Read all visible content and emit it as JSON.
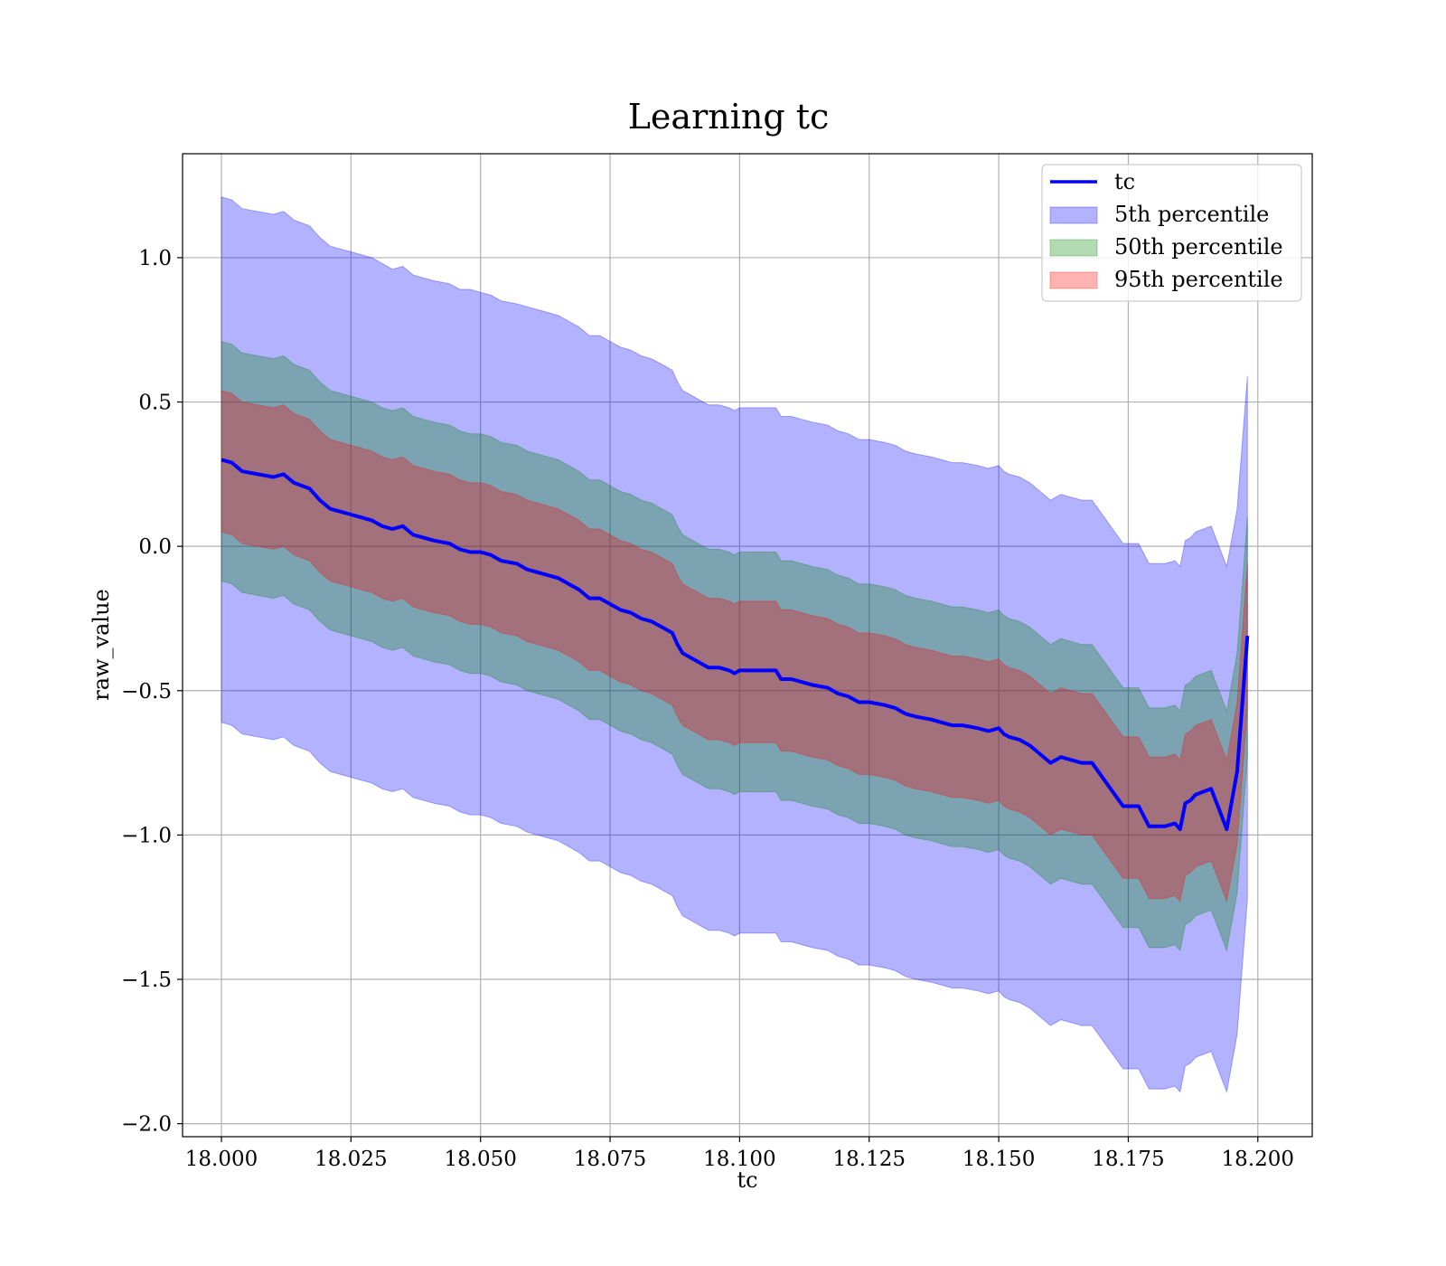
{
  "chart_data": {
    "type": "line",
    "title": "Learning tc",
    "xlabel": "tc",
    "ylabel": "raw_value",
    "xlim": [
      17.9925,
      18.2105
    ],
    "ylim": [
      -2.045,
      1.36
    ],
    "x_ticks": [
      18.0,
      18.025,
      18.05,
      18.075,
      18.1,
      18.125,
      18.15,
      18.175,
      18.2
    ],
    "x_tick_labels": [
      "18.000",
      "18.025",
      "18.050",
      "18.075",
      "18.100",
      "18.125",
      "18.150",
      "18.175",
      "18.200"
    ],
    "y_ticks": [
      1.0,
      0.5,
      0.0,
      -0.5,
      -1.0,
      -1.5,
      -2.0
    ],
    "y_tick_labels": [
      "1.0",
      "0.5",
      "0.0",
      "−0.5",
      "−1.0",
      "−1.5",
      "−2.0"
    ],
    "grid": true,
    "legend_position": "top-right",
    "x": [
      18.0,
      18.002,
      18.004,
      18.01,
      18.012,
      18.014,
      18.017,
      18.019,
      18.021,
      18.025,
      18.029,
      18.031,
      18.033,
      18.035,
      18.037,
      18.039,
      18.041,
      18.044,
      18.046,
      18.048,
      18.05,
      18.052,
      18.054,
      18.057,
      18.059,
      18.061,
      18.063,
      18.065,
      18.067,
      18.069,
      18.071,
      18.073,
      18.075,
      18.077,
      18.079,
      18.081,
      18.083,
      18.085,
      18.087,
      18.088,
      18.089,
      18.09,
      18.092,
      18.094,
      18.096,
      18.098,
      18.099,
      18.1,
      18.104,
      18.107,
      18.108,
      18.11,
      18.112,
      18.114,
      18.117,
      18.119,
      18.121,
      18.123,
      18.125,
      18.128,
      18.13,
      18.132,
      18.134,
      18.137,
      18.139,
      18.141,
      18.143,
      18.146,
      18.148,
      18.15,
      18.151,
      18.152,
      18.154,
      18.156,
      18.158,
      18.16,
      18.162,
      18.164,
      18.166,
      18.168,
      18.17,
      18.172,
      18.174,
      18.175,
      18.177,
      18.179,
      18.181,
      18.182,
      18.184,
      18.185,
      18.186,
      18.187,
      18.188,
      18.191,
      18.194,
      18.196,
      18.198
    ],
    "series": [
      {
        "name": "tc",
        "color": "#0000ff",
        "values": [
          0.3,
          0.29,
          0.26,
          0.24,
          0.25,
          0.22,
          0.2,
          0.16,
          0.13,
          0.11,
          0.09,
          0.07,
          0.06,
          0.07,
          0.04,
          0.03,
          0.02,
          0.01,
          -0.01,
          -0.02,
          -0.02,
          -0.03,
          -0.05,
          -0.06,
          -0.08,
          -0.09,
          -0.1,
          -0.11,
          -0.13,
          -0.15,
          -0.18,
          -0.18,
          -0.2,
          -0.22,
          -0.23,
          -0.25,
          -0.26,
          -0.28,
          -0.3,
          -0.34,
          -0.37,
          -0.38,
          -0.4,
          -0.42,
          -0.42,
          -0.43,
          -0.44,
          -0.43,
          -0.43,
          -0.43,
          -0.46,
          -0.46,
          -0.47,
          -0.48,
          -0.49,
          -0.51,
          -0.52,
          -0.54,
          -0.54,
          -0.55,
          -0.56,
          -0.58,
          -0.59,
          -0.6,
          -0.61,
          -0.62,
          -0.62,
          -0.63,
          -0.64,
          -0.63,
          -0.65,
          -0.66,
          -0.67,
          -0.69,
          -0.72,
          -0.75,
          -0.73,
          -0.74,
          -0.75,
          -0.75,
          -0.8,
          -0.85,
          -0.9,
          -0.9,
          -0.9,
          -0.97,
          -0.97,
          -0.97,
          -0.96,
          -0.98,
          -0.89,
          -0.88,
          -0.86,
          -0.84,
          -0.98,
          -0.78,
          -0.31
        ]
      },
      {
        "name": "5th percentile",
        "color": "#0000ff",
        "fill_opacity": 0.3,
        "upper": [
          1.21,
          1.2,
          1.17,
          1.15,
          1.16,
          1.13,
          1.11,
          1.07,
          1.04,
          1.02,
          1.0,
          0.98,
          0.96,
          0.97,
          0.94,
          0.93,
          0.92,
          0.91,
          0.89,
          0.89,
          0.88,
          0.87,
          0.85,
          0.84,
          0.83,
          0.82,
          0.81,
          0.8,
          0.78,
          0.76,
          0.73,
          0.73,
          0.71,
          0.69,
          0.68,
          0.66,
          0.65,
          0.63,
          0.61,
          0.57,
          0.54,
          0.53,
          0.51,
          0.49,
          0.49,
          0.48,
          0.47,
          0.48,
          0.48,
          0.48,
          0.45,
          0.45,
          0.44,
          0.43,
          0.42,
          0.4,
          0.39,
          0.37,
          0.37,
          0.36,
          0.35,
          0.33,
          0.32,
          0.31,
          0.3,
          0.29,
          0.29,
          0.28,
          0.27,
          0.28,
          0.26,
          0.25,
          0.24,
          0.22,
          0.19,
          0.16,
          0.18,
          0.17,
          0.16,
          0.16,
          0.11,
          0.06,
          0.01,
          0.01,
          0.01,
          -0.06,
          -0.06,
          -0.06,
          -0.05,
          -0.07,
          0.02,
          0.03,
          0.05,
          0.07,
          -0.07,
          0.13,
          0.59
        ],
        "lower": [
          -0.61,
          -0.62,
          -0.65,
          -0.67,
          -0.66,
          -0.69,
          -0.71,
          -0.75,
          -0.78,
          -0.8,
          -0.82,
          -0.84,
          -0.85,
          -0.84,
          -0.87,
          -0.88,
          -0.89,
          -0.9,
          -0.92,
          -0.93,
          -0.93,
          -0.94,
          -0.96,
          -0.97,
          -0.99,
          -1.0,
          -1.01,
          -1.02,
          -1.04,
          -1.06,
          -1.09,
          -1.09,
          -1.11,
          -1.13,
          -1.14,
          -1.16,
          -1.17,
          -1.19,
          -1.21,
          -1.25,
          -1.28,
          -1.29,
          -1.31,
          -1.33,
          -1.33,
          -1.34,
          -1.35,
          -1.34,
          -1.34,
          -1.34,
          -1.37,
          -1.37,
          -1.38,
          -1.39,
          -1.4,
          -1.42,
          -1.43,
          -1.45,
          -1.45,
          -1.46,
          -1.47,
          -1.49,
          -1.5,
          -1.51,
          -1.52,
          -1.53,
          -1.53,
          -1.54,
          -1.55,
          -1.54,
          -1.56,
          -1.57,
          -1.58,
          -1.6,
          -1.63,
          -1.66,
          -1.64,
          -1.65,
          -1.66,
          -1.66,
          -1.71,
          -1.76,
          -1.81,
          -1.81,
          -1.81,
          -1.88,
          -1.88,
          -1.88,
          -1.87,
          -1.89,
          -1.8,
          -1.79,
          -1.77,
          -1.75,
          -1.89,
          -1.69,
          -1.22
        ]
      },
      {
        "name": "50th percentile",
        "color": "#008000",
        "fill_opacity": 0.3,
        "upper": [
          0.71,
          0.7,
          0.67,
          0.65,
          0.66,
          0.63,
          0.61,
          0.57,
          0.54,
          0.52,
          0.5,
          0.48,
          0.47,
          0.48,
          0.45,
          0.44,
          0.43,
          0.42,
          0.4,
          0.39,
          0.39,
          0.38,
          0.36,
          0.35,
          0.33,
          0.32,
          0.31,
          0.3,
          0.28,
          0.26,
          0.23,
          0.23,
          0.21,
          0.19,
          0.18,
          0.16,
          0.15,
          0.13,
          0.11,
          0.07,
          0.04,
          0.03,
          0.01,
          -0.01,
          -0.01,
          -0.02,
          -0.03,
          -0.02,
          -0.02,
          -0.02,
          -0.05,
          -0.05,
          -0.06,
          -0.07,
          -0.08,
          -0.1,
          -0.11,
          -0.13,
          -0.13,
          -0.14,
          -0.15,
          -0.17,
          -0.18,
          -0.19,
          -0.2,
          -0.21,
          -0.21,
          -0.22,
          -0.23,
          -0.22,
          -0.24,
          -0.25,
          -0.26,
          -0.28,
          -0.31,
          -0.34,
          -0.32,
          -0.33,
          -0.34,
          -0.34,
          -0.39,
          -0.44,
          -0.49,
          -0.49,
          -0.49,
          -0.56,
          -0.56,
          -0.56,
          -0.55,
          -0.57,
          -0.48,
          -0.47,
          -0.45,
          -0.43,
          -0.57,
          -0.37,
          0.1
        ],
        "lower": [
          -0.12,
          -0.13,
          -0.16,
          -0.18,
          -0.17,
          -0.2,
          -0.22,
          -0.26,
          -0.29,
          -0.31,
          -0.33,
          -0.35,
          -0.36,
          -0.35,
          -0.38,
          -0.39,
          -0.4,
          -0.41,
          -0.43,
          -0.44,
          -0.44,
          -0.45,
          -0.47,
          -0.48,
          -0.5,
          -0.51,
          -0.52,
          -0.53,
          -0.55,
          -0.57,
          -0.6,
          -0.6,
          -0.62,
          -0.64,
          -0.65,
          -0.67,
          -0.68,
          -0.7,
          -0.72,
          -0.76,
          -0.79,
          -0.8,
          -0.82,
          -0.84,
          -0.84,
          -0.85,
          -0.86,
          -0.85,
          -0.85,
          -0.85,
          -0.88,
          -0.88,
          -0.89,
          -0.9,
          -0.91,
          -0.93,
          -0.94,
          -0.96,
          -0.96,
          -0.97,
          -0.98,
          -1.0,
          -1.01,
          -1.02,
          -1.03,
          -1.04,
          -1.04,
          -1.05,
          -1.06,
          -1.05,
          -1.07,
          -1.08,
          -1.09,
          -1.11,
          -1.14,
          -1.17,
          -1.15,
          -1.16,
          -1.17,
          -1.17,
          -1.22,
          -1.27,
          -1.32,
          -1.32,
          -1.32,
          -1.39,
          -1.39,
          -1.39,
          -1.38,
          -1.4,
          -1.31,
          -1.3,
          -1.28,
          -1.26,
          -1.4,
          -1.2,
          -0.73
        ]
      },
      {
        "name": "95th percentile",
        "color": "#ff0000",
        "fill_opacity": 0.3,
        "upper": [
          0.54,
          0.53,
          0.5,
          0.48,
          0.49,
          0.46,
          0.44,
          0.4,
          0.37,
          0.35,
          0.33,
          0.31,
          0.3,
          0.31,
          0.28,
          0.27,
          0.26,
          0.25,
          0.23,
          0.22,
          0.22,
          0.21,
          0.19,
          0.18,
          0.16,
          0.15,
          0.14,
          0.13,
          0.11,
          0.09,
          0.06,
          0.06,
          0.04,
          0.02,
          0.01,
          -0.01,
          -0.02,
          -0.04,
          -0.06,
          -0.1,
          -0.13,
          -0.14,
          -0.16,
          -0.18,
          -0.18,
          -0.19,
          -0.2,
          -0.19,
          -0.19,
          -0.19,
          -0.22,
          -0.22,
          -0.23,
          -0.24,
          -0.25,
          -0.27,
          -0.28,
          -0.3,
          -0.3,
          -0.31,
          -0.32,
          -0.34,
          -0.35,
          -0.36,
          -0.37,
          -0.38,
          -0.38,
          -0.39,
          -0.4,
          -0.39,
          -0.41,
          -0.42,
          -0.43,
          -0.45,
          -0.48,
          -0.51,
          -0.49,
          -0.5,
          -0.51,
          -0.51,
          -0.56,
          -0.61,
          -0.66,
          -0.66,
          -0.66,
          -0.73,
          -0.73,
          -0.73,
          -0.72,
          -0.74,
          -0.65,
          -0.64,
          -0.62,
          -0.6,
          -0.74,
          -0.54,
          -0.06
        ],
        "lower": [
          0.05,
          0.04,
          0.01,
          -0.01,
          0.0,
          -0.03,
          -0.05,
          -0.09,
          -0.12,
          -0.14,
          -0.16,
          -0.18,
          -0.19,
          -0.18,
          -0.21,
          -0.22,
          -0.23,
          -0.24,
          -0.26,
          -0.27,
          -0.27,
          -0.28,
          -0.3,
          -0.31,
          -0.33,
          -0.34,
          -0.35,
          -0.36,
          -0.38,
          -0.4,
          -0.43,
          -0.43,
          -0.45,
          -0.47,
          -0.48,
          -0.5,
          -0.51,
          -0.53,
          -0.55,
          -0.59,
          -0.62,
          -0.63,
          -0.65,
          -0.67,
          -0.67,
          -0.68,
          -0.69,
          -0.68,
          -0.68,
          -0.68,
          -0.71,
          -0.71,
          -0.72,
          -0.73,
          -0.74,
          -0.76,
          -0.77,
          -0.79,
          -0.79,
          -0.8,
          -0.81,
          -0.83,
          -0.84,
          -0.85,
          -0.86,
          -0.87,
          -0.87,
          -0.88,
          -0.89,
          -0.88,
          -0.9,
          -0.91,
          -0.92,
          -0.94,
          -0.97,
          -1.0,
          -0.98,
          -0.99,
          -1.0,
          -1.0,
          -1.05,
          -1.1,
          -1.15,
          -1.15,
          -1.15,
          -1.22,
          -1.22,
          -1.22,
          -1.21,
          -1.23,
          -1.14,
          -1.13,
          -1.11,
          -1.09,
          -1.23,
          -1.03,
          -0.56
        ]
      }
    ]
  }
}
